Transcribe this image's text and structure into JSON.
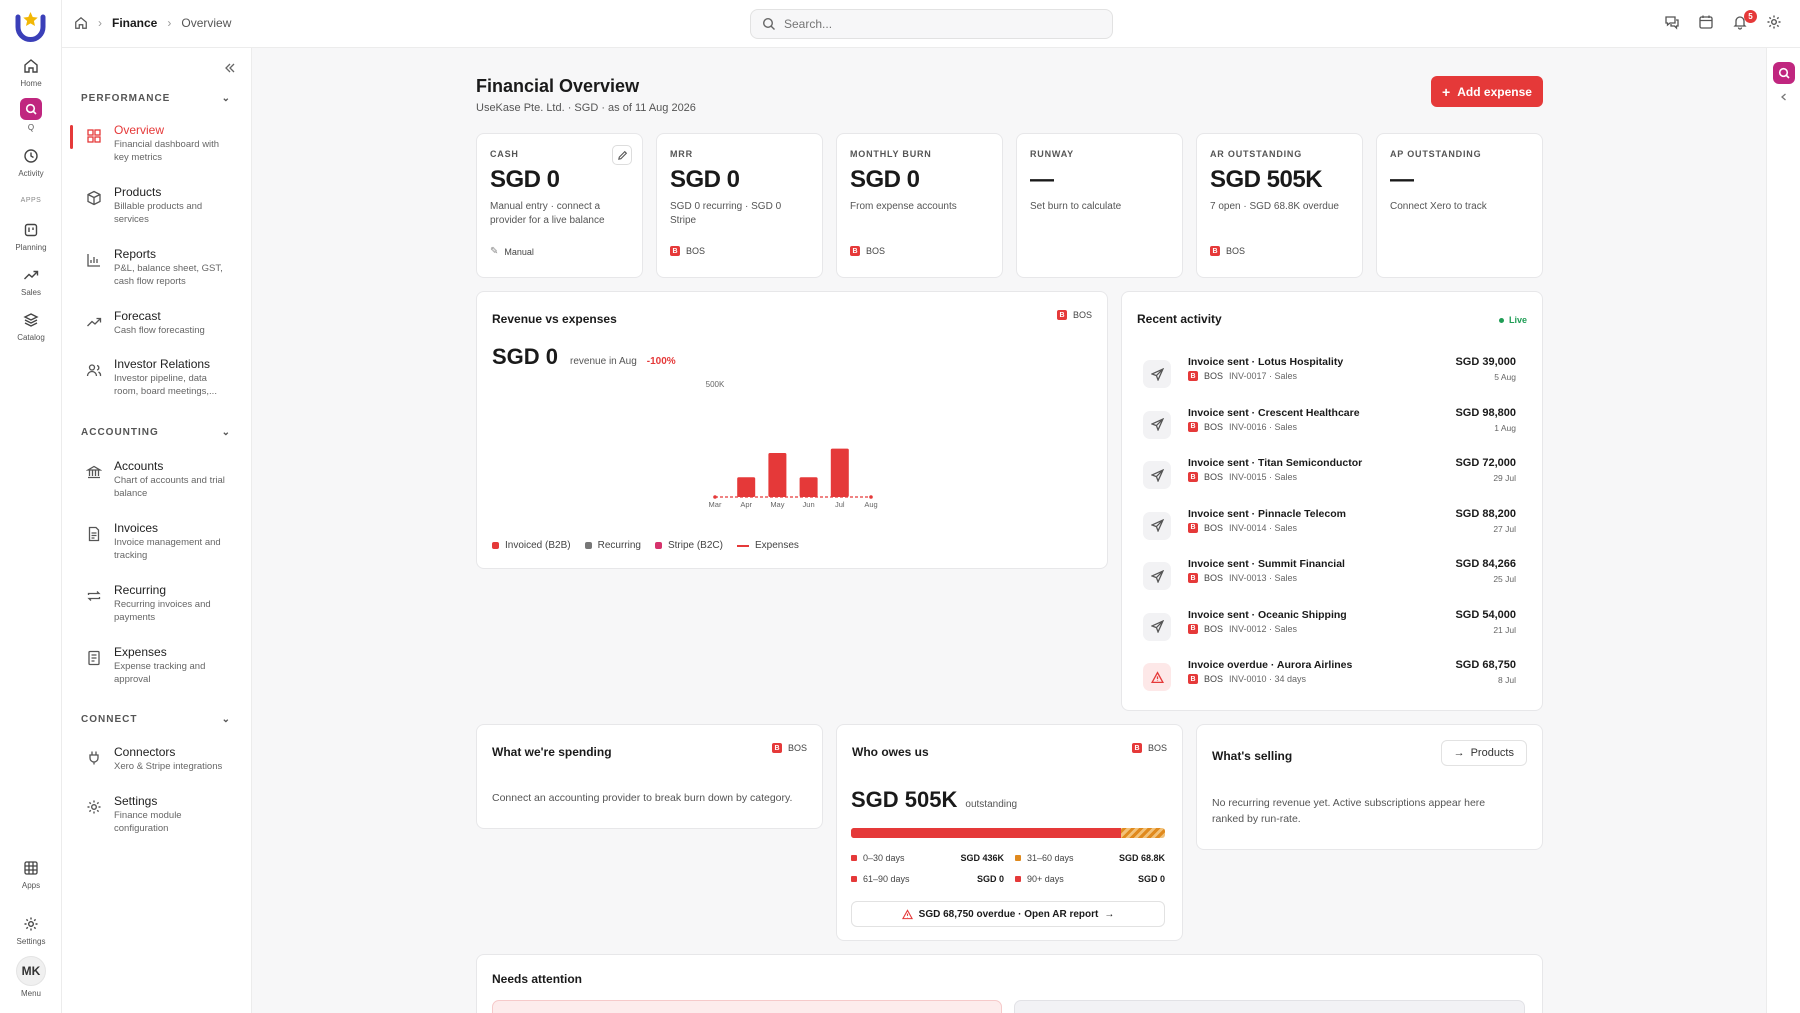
{
  "breadcrumb": {
    "root": "Finance",
    "current": "Overview"
  },
  "search": {
    "placeholder": "Search..."
  },
  "notifications": {
    "count": "5"
  },
  "rail": {
    "items": [
      {
        "label": "Home",
        "icon": "home-icon"
      },
      {
        "label": "Q",
        "icon": "q-icon"
      },
      {
        "label": "Activity",
        "icon": "history-icon"
      },
      {
        "label": "Planning",
        "icon": "planning-icon"
      },
      {
        "label": "Sales",
        "icon": "trend-icon"
      },
      {
        "label": "Catalog",
        "icon": "layers-icon"
      },
      {
        "label": "Apps",
        "icon": "grid-icon"
      },
      {
        "label": "Settings",
        "icon": "gear-icon"
      }
    ],
    "apps_label": "APPS",
    "user_initials": "MK",
    "menu_label": "Menu"
  },
  "sidebar": {
    "sections": [
      {
        "title": "PERFORMANCE",
        "items": [
          {
            "title": "Overview",
            "desc": "Financial dashboard with key metrics",
            "icon": "dashboard-icon",
            "active": true
          },
          {
            "title": "Products",
            "desc": "Billable products and services",
            "icon": "box-icon"
          },
          {
            "title": "Reports",
            "desc": "P&L, balance sheet, GST, cash flow reports",
            "icon": "bar-chart-icon"
          },
          {
            "title": "Forecast",
            "desc": "Cash flow forecasting",
            "icon": "trend-up-icon"
          },
          {
            "title": "Investor Relations",
            "desc": "Investor pipeline, data room, board meetings,...",
            "icon": "users-icon"
          }
        ]
      },
      {
        "title": "ACCOUNTING",
        "items": [
          {
            "title": "Accounts",
            "desc": "Chart of accounts and trial balance",
            "icon": "bank-icon"
          },
          {
            "title": "Invoices",
            "desc": "Invoice management and tracking",
            "icon": "document-icon"
          },
          {
            "title": "Recurring",
            "desc": "Recurring invoices and payments",
            "icon": "repeat-icon"
          },
          {
            "title": "Expenses",
            "desc": "Expense tracking and approval",
            "icon": "receipt-icon"
          }
        ]
      },
      {
        "title": "CONNECT",
        "items": [
          {
            "title": "Connectors",
            "desc": "Xero & Stripe integrations",
            "icon": "plug-icon"
          },
          {
            "title": "Settings",
            "desc": "Finance module configuration",
            "icon": "gear-icon"
          }
        ]
      }
    ]
  },
  "header": {
    "title": "Financial Overview",
    "subtitle": "UseKase Pte. Ltd. · SGD · as of 11 Aug 2026",
    "add_button": "Add expense"
  },
  "kpis": [
    {
      "label": "CASH",
      "value": "SGD 0",
      "desc": "Manual entry · connect a provider for a live balance",
      "source": "Manual"
    },
    {
      "label": "MRR",
      "value": "SGD 0",
      "desc": "SGD 0 recurring · SGD 0 Stripe",
      "source": "BOS"
    },
    {
      "label": "MONTHLY BURN",
      "value": "SGD 0",
      "desc": "From expense accounts",
      "source": "BOS"
    },
    {
      "label": "RUNWAY",
      "value": "—",
      "desc": "Set burn to calculate",
      "source": ""
    },
    {
      "label": "AR OUTSTANDING",
      "value": "SGD 505K",
      "desc": "7 open · SGD 68.8K overdue",
      "source": "BOS"
    },
    {
      "label": "AP OUTSTANDING",
      "value": "—",
      "desc": "Connect Xero to track",
      "source": ""
    }
  ],
  "revenue": {
    "title": "Revenue vs expenses",
    "source": "BOS",
    "value": "SGD 0",
    "value_caption": "revenue in Aug",
    "delta": "-100%",
    "tick_label": "500K"
  },
  "chart_data": {
    "type": "bar",
    "categories": [
      "Mar",
      "Apr",
      "May",
      "Jun",
      "Jul",
      "Aug"
    ],
    "series": [
      {
        "name": "Invoiced (B2B)",
        "values": [
          0,
          90000,
          200000,
          90000,
          220000,
          0
        ]
      },
      {
        "name": "Recurring",
        "values": [
          0,
          0,
          0,
          0,
          0,
          0
        ]
      },
      {
        "name": "Stripe (B2C)",
        "values": [
          0,
          0,
          0,
          0,
          0,
          0
        ]
      },
      {
        "name": "Expenses",
        "values": [
          0,
          0,
          0,
          0,
          0,
          0
        ]
      }
    ],
    "ylim": [
      0,
      500000
    ],
    "legend": "bottom",
    "colors": {
      "invoiced": "#e53939",
      "recurring": "#777777",
      "stripe": "#d6336c",
      "expenses": "#e53939"
    }
  },
  "activity": {
    "title": "Recent activity",
    "live": "Live",
    "items": [
      {
        "title": "Invoice sent · Lotus Hospitality",
        "source": "BOS",
        "meta": "INV-0017 · Sales",
        "amount": "SGD 39,000",
        "date": "5 Aug",
        "type": "sent"
      },
      {
        "title": "Invoice sent · Crescent Healthcare",
        "source": "BOS",
        "meta": "INV-0016 · Sales",
        "amount": "SGD 98,800",
        "date": "1 Aug",
        "type": "sent"
      },
      {
        "title": "Invoice sent · Titan Semiconductor",
        "source": "BOS",
        "meta": "INV-0015 · Sales",
        "amount": "SGD 72,000",
        "date": "29 Jul",
        "type": "sent"
      },
      {
        "title": "Invoice sent · Pinnacle Telecom",
        "source": "BOS",
        "meta": "INV-0014 · Sales",
        "amount": "SGD 88,200",
        "date": "27 Jul",
        "type": "sent"
      },
      {
        "title": "Invoice sent · Summit Financial",
        "source": "BOS",
        "meta": "INV-0013 · Sales",
        "amount": "SGD 84,266",
        "date": "25 Jul",
        "type": "sent"
      },
      {
        "title": "Invoice sent · Oceanic Shipping",
        "source": "BOS",
        "meta": "INV-0012 · Sales",
        "amount": "SGD 54,000",
        "date": "21 Jul",
        "type": "sent"
      },
      {
        "title": "Invoice overdue · Aurora Airlines",
        "source": "BOS",
        "meta": "INV-0010 · 34 days",
        "amount": "SGD 68,750",
        "date": "8 Jul",
        "type": "overdue"
      }
    ]
  },
  "spending": {
    "title": "What we're spending",
    "source": "BOS",
    "text": "Connect an accounting provider to break burn down by category."
  },
  "owes": {
    "title": "Who owes us",
    "source": "BOS",
    "value": "SGD 505K",
    "caption": "outstanding",
    "current_share": 0.86,
    "aging": [
      {
        "label": "0–30 days",
        "value": "SGD 436K",
        "color": "#e53939"
      },
      {
        "label": "31–60 days",
        "value": "SGD 68.8K",
        "color": "#e08a1e"
      },
      {
        "label": "61–90 days",
        "value": "SGD 0",
        "color": "#e53939"
      },
      {
        "label": "90+ days",
        "value": "SGD 0",
        "color": "#e53939"
      }
    ],
    "cta": "SGD 68,750 overdue · Open AR report"
  },
  "selling": {
    "title": "What's selling",
    "button": "Products",
    "text": "No recurring revenue yet. Active subscriptions appear here ranked by run-rate."
  },
  "attention": {
    "title": "Needs attention"
  }
}
